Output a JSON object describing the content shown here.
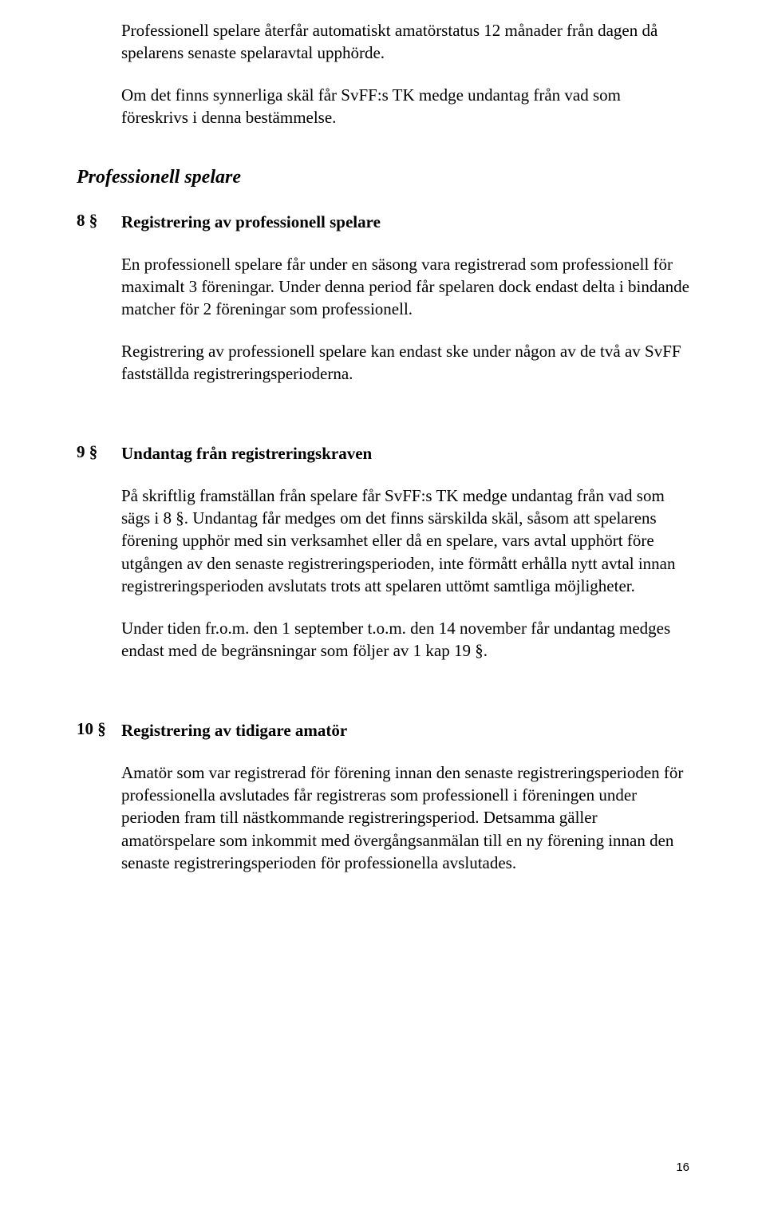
{
  "intro": {
    "p1": "Professionell spelare återfår automatiskt amatörstatus 12 månader från dagen då spelarens senaste spelaravtal upphörde.",
    "p2": "Om det finns synnerliga skäl får SvFF:s TK medge undantag från vad som föreskrivs i denna bestämmelse."
  },
  "section_heading": "Professionell spelare",
  "clauses": [
    {
      "num": "8 §",
      "title": "Registrering av professionell spelare",
      "paras": [
        "En professionell spelare får under en säsong vara registrerad som professionell för maximalt 3 föreningar. Under denna period får spelaren dock endast delta i bindande matcher för 2 föreningar som professionell.",
        "Registrering av professionell spelare kan endast ske under någon av de två av SvFF fastställda registreringsperioderna."
      ]
    },
    {
      "num": "9 §",
      "title": "Undantag från registreringskraven",
      "paras": [
        "På skriftlig framställan från spelare får SvFF:s TK medge undantag från vad som sägs i 8 §. Undantag får medges om det finns särskilda skäl, såsom att spelarens förening upphör med sin verksamhet eller då en spelare, vars avtal upphört före utgången av den senaste registreringsperioden, inte förmått erhålla nytt avtal innan registreringsperioden avslutats trots att spelaren uttömt samtliga möjligheter.",
        "Under tiden fr.o.m. den 1 september t.o.m. den 14 november får undantag medges endast med de begränsningar som följer av 1 kap 19 §."
      ]
    },
    {
      "num": "10 §",
      "title": "Registrering av tidigare amatör",
      "paras": [
        "Amatör som var registrerad för förening innan den senaste registreringsperioden för professionella avslutades får registreras som professionell i föreningen under perioden fram till nästkommande registreringsperiod. Detsamma gäller amatörspelare som inkommit med övergångsanmälan till en ny förening innan den senaste registreringsperioden för professionella avslutades."
      ]
    }
  ],
  "page_number": "16"
}
